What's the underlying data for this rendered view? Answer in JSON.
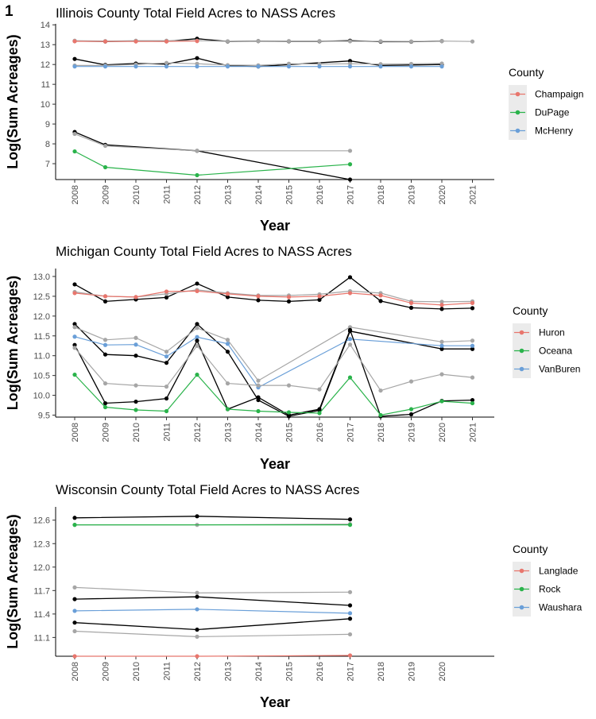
{
  "figure": {
    "panel_label": "1"
  },
  "style": {
    "line_black": "#000000",
    "line_grey": "#a6a6a6",
    "legend_bg": "#ebebeb"
  },
  "chart_data": [
    {
      "type": "line",
      "title": "Illinois County Total Field Acres to NASS Acres",
      "xlabel": "Year",
      "ylabel": "Log(Sum Acreages)",
      "x_ticks": [
        "2008",
        "2009",
        "2010",
        "2011",
        "2012",
        "2013",
        "2014",
        "2015",
        "2016",
        "2017",
        "2018",
        "2019",
        "2020",
        "2021"
      ],
      "y_ticks": [
        "7",
        "8",
        "9",
        "10",
        "11",
        "12",
        "13",
        "14"
      ],
      "xlim": [
        2007.6,
        2021.5
      ],
      "ylim": [
        6.2,
        14.05
      ],
      "grid": false,
      "legend": {
        "title": "County",
        "position": "right",
        "items": [
          {
            "label": "Champaign",
            "color": "#e8766d"
          },
          {
            "label": "DuPage",
            "color": "#2ab34b"
          },
          {
            "label": "McHenry",
            "color": "#6a9fd8"
          }
        ]
      },
      "lines": [
        {
          "color": "#000000",
          "x": [
            2008,
            2009,
            2010,
            2011,
            2012,
            2013,
            2014,
            2015,
            2016,
            2017,
            2018,
            2019,
            2020
          ],
          "y": [
            13.18,
            13.16,
            13.18,
            13.17,
            13.3,
            13.16,
            13.18,
            13.17,
            13.17,
            13.2,
            13.15,
            13.15,
            13.18
          ]
        },
        {
          "color": "#a6a6a6",
          "x": [
            2008,
            2009,
            2010,
            2011,
            2012,
            2013,
            2014,
            2015,
            2016,
            2017,
            2018,
            2019,
            2020,
            2021
          ],
          "y": [
            13.2,
            13.18,
            13.2,
            13.2,
            13.2,
            13.17,
            13.18,
            13.18,
            13.18,
            13.17,
            13.17,
            13.16,
            13.18,
            13.16
          ]
        },
        {
          "color": "#e8766d",
          "x": [
            2008,
            2009,
            2010,
            2011,
            2012
          ],
          "y": [
            13.17,
            13.16,
            13.16,
            13.16,
            13.18
          ]
        },
        {
          "color": "#000000",
          "x": [
            2008,
            2009,
            2010,
            2011,
            2012,
            2013,
            2014,
            2017,
            2018,
            2020
          ],
          "y": [
            12.28,
            11.98,
            12.05,
            12.02,
            12.32,
            11.94,
            11.9,
            12.18,
            11.95,
            12.0
          ]
        },
        {
          "color": "#a6a6a6",
          "x": [
            2008,
            2009,
            2010,
            2011,
            2012,
            2013,
            2014,
            2015,
            2016,
            2017,
            2018,
            2019,
            2020
          ],
          "y": [
            11.95,
            11.95,
            12.0,
            12.08,
            12.04,
            11.97,
            11.96,
            12.04,
            12.02,
            12.04,
            12.02,
            12.03,
            12.05
          ]
        },
        {
          "color": "#6a9fd8",
          "x": [
            2008,
            2009,
            2010,
            2011,
            2012,
            2013,
            2014,
            2015,
            2016,
            2017,
            2018,
            2019,
            2020
          ],
          "y": [
            11.9,
            11.9,
            11.9,
            11.9,
            11.9,
            11.9,
            11.9,
            11.9,
            11.9,
            11.9,
            11.9,
            11.9,
            11.9
          ]
        },
        {
          "color": "#000000",
          "x": [
            2008,
            2009,
            2012,
            2017
          ],
          "y": [
            8.6,
            7.95,
            7.65,
            6.2
          ]
        },
        {
          "color": "#a6a6a6",
          "x": [
            2008,
            2009,
            2012,
            2017
          ],
          "y": [
            8.5,
            7.9,
            7.65,
            7.65
          ]
        },
        {
          "color": "#2ab34b",
          "x": [
            2008,
            2009,
            2012,
            2017
          ],
          "y": [
            7.62,
            6.82,
            6.42,
            6.97
          ]
        }
      ]
    },
    {
      "type": "line",
      "title": "Michigan County Total Field Acres to NASS Acres",
      "xlabel": "Year",
      "ylabel": "Log(Sum Acreages)",
      "x_ticks": [
        "2008",
        "2009",
        "2010",
        "2011",
        "2012",
        "2013",
        "2014",
        "2015",
        "2016",
        "2017",
        "2018",
        "2019",
        "2020",
        "2021"
      ],
      "y_ticks": [
        "9.5",
        "10.0",
        "10.5",
        "11.0",
        "11.5",
        "12.0",
        "12.5",
        "13.0"
      ],
      "xlim": [
        2007.6,
        2021.5
      ],
      "ylim": [
        9.45,
        13.2
      ],
      "grid": false,
      "legend": {
        "title": "County",
        "position": "right",
        "items": [
          {
            "label": "Huron",
            "color": "#e8766d"
          },
          {
            "label": "Oceana",
            "color": "#2ab34b"
          },
          {
            "label": "VanBuren",
            "color": "#6a9fd8"
          }
        ]
      },
      "lines": [
        {
          "color": "#000000",
          "x": [
            2008,
            2009,
            2010,
            2011,
            2012,
            2013,
            2014,
            2015,
            2016,
            2017,
            2018,
            2019,
            2020,
            2021
          ],
          "y": [
            12.8,
            12.37,
            12.42,
            12.47,
            12.82,
            12.48,
            12.4,
            12.37,
            12.41,
            12.98,
            12.38,
            12.21,
            12.18,
            12.2
          ]
        },
        {
          "color": "#a6a6a6",
          "x": [
            2008,
            2009,
            2010,
            2011,
            2012,
            2013,
            2014,
            2015,
            2016,
            2017,
            2018,
            2019,
            2020,
            2021
          ],
          "y": [
            12.61,
            12.5,
            12.48,
            12.56,
            12.66,
            12.58,
            12.52,
            12.52,
            12.55,
            12.63,
            12.58,
            12.37,
            12.36,
            12.37
          ]
        },
        {
          "color": "#e8766d",
          "x": [
            2008,
            2009,
            2010,
            2011,
            2012,
            2013,
            2014,
            2015,
            2016,
            2017,
            2018,
            2019,
            2020,
            2021
          ],
          "y": [
            12.58,
            12.5,
            12.48,
            12.62,
            12.63,
            12.56,
            12.5,
            12.48,
            12.5,
            12.58,
            12.52,
            12.33,
            12.28,
            12.33
          ]
        },
        {
          "color": "#000000",
          "x": [
            2008,
            2009,
            2010,
            2011,
            2012,
            2013,
            2014,
            2015,
            2016,
            2017,
            2020,
            2021
          ],
          "y": [
            11.8,
            11.03,
            11.0,
            10.82,
            11.8,
            11.1,
            9.88,
            9.47,
            9.62,
            11.62,
            11.17,
            11.17
          ]
        },
        {
          "color": "#a6a6a6",
          "x": [
            2008,
            2009,
            2010,
            2011,
            2012,
            2013,
            2014,
            2017,
            2020,
            2021
          ],
          "y": [
            11.72,
            11.4,
            11.45,
            11.1,
            11.7,
            11.4,
            10.37,
            11.72,
            11.35,
            11.38
          ]
        },
        {
          "color": "#6a9fd8",
          "x": [
            2008,
            2009,
            2010,
            2011,
            2012,
            2013,
            2014,
            2017,
            2020,
            2021
          ],
          "y": [
            11.48,
            11.27,
            11.28,
            10.98,
            11.47,
            11.3,
            10.2,
            11.42,
            11.25,
            11.25
          ]
        },
        {
          "color": "#000000",
          "x": [
            2008,
            2009,
            2010,
            2011,
            2012,
            2013,
            2014,
            2015,
            2016,
            2017,
            2018,
            2019,
            2020,
            2021
          ],
          "y": [
            11.27,
            9.8,
            9.84,
            9.92,
            11.38,
            9.65,
            9.95,
            9.5,
            9.65,
            11.65,
            9.47,
            9.52,
            9.86,
            9.88
          ]
        },
        {
          "color": "#a6a6a6",
          "x": [
            2008,
            2009,
            2010,
            2011,
            2012,
            2013,
            2014,
            2015,
            2016,
            2017,
            2018,
            2019,
            2020,
            2021
          ],
          "y": [
            11.2,
            10.3,
            10.25,
            10.22,
            11.25,
            10.3,
            10.25,
            10.25,
            10.15,
            11.28,
            10.12,
            10.35,
            10.53,
            10.45
          ]
        },
        {
          "color": "#2ab34b",
          "x": [
            2008,
            2009,
            2010,
            2011,
            2012,
            2013,
            2014,
            2015,
            2016,
            2017,
            2018,
            2019,
            2020,
            2021
          ],
          "y": [
            10.52,
            9.7,
            9.63,
            9.6,
            10.52,
            9.65,
            9.6,
            9.57,
            9.55,
            10.45,
            9.5,
            9.65,
            9.85,
            9.8
          ]
        }
      ]
    },
    {
      "type": "line",
      "title": "Wisconsin County Total Field Acres to NASS Acres",
      "xlabel": "Year",
      "ylabel": "Log(Sum Acreages)",
      "x_ticks": [
        "2008",
        "2009",
        "2010",
        "2011",
        "2012",
        "2013",
        "2014",
        "2015",
        "2016",
        "2017"
      ],
      "x_ticks_outside": [
        "2018",
        "2019",
        "2020"
      ],
      "y_ticks": [
        "11.1",
        "11.4",
        "11.7",
        "12.0",
        "12.3",
        "12.6"
      ],
      "xlim": [
        2007.6,
        2017.5
      ],
      "ylim": [
        10.86,
        12.77
      ],
      "grid": false,
      "legend": {
        "title": "County",
        "position": "right",
        "items": [
          {
            "label": "Langlade",
            "color": "#e8766d"
          },
          {
            "label": "Rock",
            "color": "#2ab34b"
          },
          {
            "label": "Waushara",
            "color": "#6a9fd8"
          }
        ]
      },
      "lines": [
        {
          "color": "#000000",
          "x": [
            2008,
            2012,
            2017
          ],
          "y": [
            12.63,
            12.65,
            12.61
          ]
        },
        {
          "color": "#a6a6a6",
          "x": [
            2008,
            2012,
            2017
          ],
          "y": [
            12.54,
            12.54,
            12.55
          ]
        },
        {
          "color": "#2ab34b",
          "x": [
            2008,
            2017
          ],
          "y": [
            12.54,
            12.54
          ]
        },
        {
          "color": "#a6a6a6",
          "x": [
            2008,
            2012,
            2017
          ],
          "y": [
            11.74,
            11.67,
            11.68
          ]
        },
        {
          "color": "#000000",
          "x": [
            2008,
            2012,
            2017
          ],
          "y": [
            11.59,
            11.62,
            11.51
          ]
        },
        {
          "color": "#6a9fd8",
          "x": [
            2008,
            2012,
            2017
          ],
          "y": [
            11.44,
            11.46,
            11.41
          ]
        },
        {
          "color": "#000000",
          "x": [
            2008,
            2012,
            2017
          ],
          "y": [
            11.29,
            11.2,
            11.34
          ]
        },
        {
          "color": "#a6a6a6",
          "x": [
            2008,
            2012,
            2017
          ],
          "y": [
            11.18,
            11.11,
            11.14
          ]
        },
        {
          "color": "#e8766d",
          "x": [
            2008,
            2012,
            2017
          ],
          "y": [
            10.86,
            10.86,
            10.87
          ]
        }
      ]
    }
  ]
}
